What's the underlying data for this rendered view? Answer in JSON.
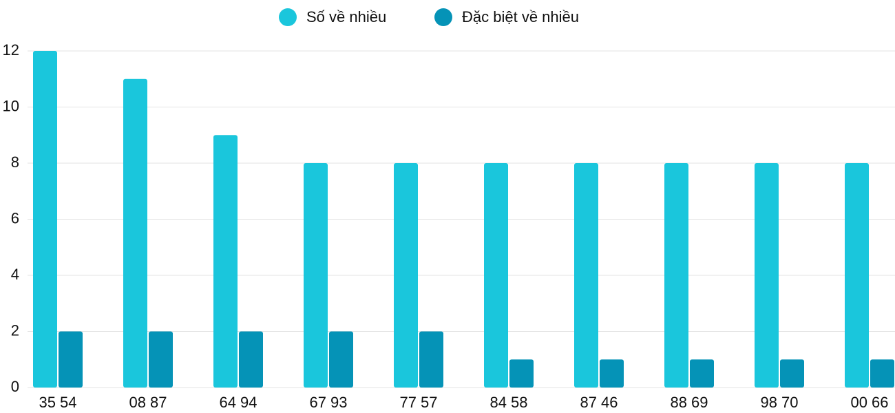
{
  "chart_data": {
    "type": "bar",
    "categories": [
      "35 54",
      "08 87",
      "64 94",
      "67 93",
      "77 57",
      "84 58",
      "87 46",
      "88 69",
      "98 70",
      "00 66"
    ],
    "series": [
      {
        "name": "Số về nhiều",
        "color": "#1ac6dc",
        "values": [
          12,
          11,
          9,
          8,
          8,
          8,
          8,
          8,
          8,
          8
        ]
      },
      {
        "name": "Đặc biệt về nhiều",
        "color": "#0593b7",
        "values": [
          2,
          2,
          2,
          2,
          2,
          1,
          1,
          1,
          1,
          1
        ]
      }
    ],
    "ylim": [
      0,
      12
    ],
    "yticks": [
      0,
      2,
      4,
      6,
      8,
      10,
      12
    ],
    "grid": true,
    "legend": "top"
  }
}
